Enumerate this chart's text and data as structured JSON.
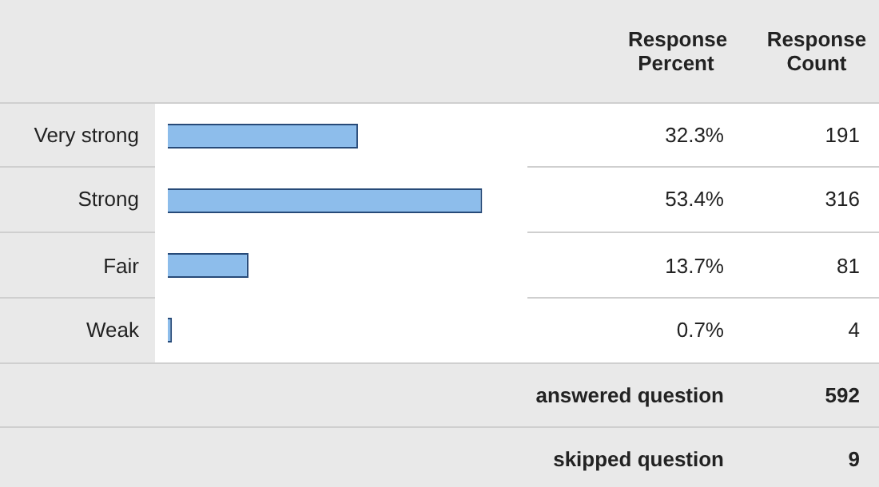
{
  "chart_data": {
    "type": "bar",
    "orientation": "horizontal",
    "categories": [
      "Very strong",
      "Strong",
      "Fair",
      "Weak"
    ],
    "values": [
      32.3,
      53.4,
      13.7,
      0.7
    ],
    "value_labels": [
      "32.3%",
      "53.4%",
      "13.7%",
      "0.7%"
    ],
    "color": "#8dbdeb",
    "annotations": [
      "Response Percent",
      "Response Count",
      "answered question",
      "592",
      "skipped question",
      "9",
      "191",
      "316",
      "81",
      "4"
    ]
  }
}
